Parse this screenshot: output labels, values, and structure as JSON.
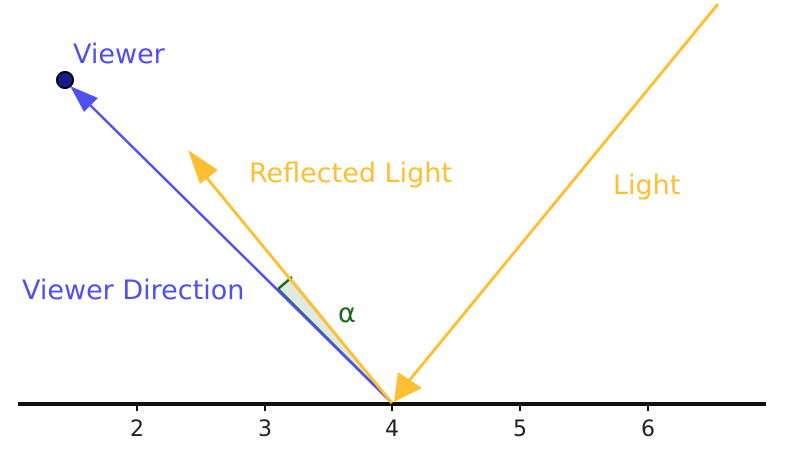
{
  "labels": {
    "viewer": "Viewer",
    "reflected_light": "Reflected Light",
    "light": "Light",
    "viewer_direction": "Viewer Direction",
    "angle": "α"
  },
  "axis": {
    "ticks": [
      "2",
      "3",
      "4",
      "5",
      "6"
    ]
  },
  "colors": {
    "viewer": "#5050f0",
    "light": "#ffbf33",
    "angle": "#1a6b1a",
    "angle_fill": "#dfe9df",
    "axis": "#111111"
  }
}
